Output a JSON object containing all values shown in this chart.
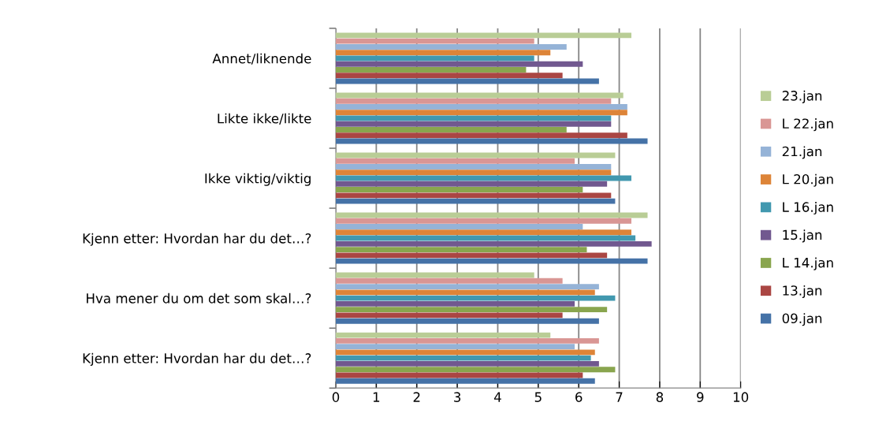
{
  "chart_data": {
    "type": "bar",
    "orientation": "horizontal",
    "categories": [
      "Annet/liknende",
      "Likte ikke/likte",
      "Ikke viktig/viktig",
      "Kjenn etter: Hvordan har du det…?",
      "Hva mener du om det som skal…?",
      "Kjenn etter: Hvordan har du det…?"
    ],
    "series": [
      {
        "name": "23.jan",
        "color": "#b9cd96",
        "values": [
          7.3,
          7.1,
          6.9,
          7.7,
          4.9,
          5.3
        ]
      },
      {
        "name": "L 22.jan",
        "color": "#d99694",
        "values": [
          4.9,
          6.8,
          5.9,
          7.3,
          5.6,
          6.5
        ]
      },
      {
        "name": "21.jan",
        "color": "#95b3d7",
        "values": [
          5.7,
          7.2,
          6.8,
          6.1,
          6.5,
          5.9
        ]
      },
      {
        "name": "L 20.jan",
        "color": "#dd8438",
        "values": [
          5.3,
          7.2,
          6.8,
          7.3,
          6.4,
          6.4
        ]
      },
      {
        "name": "L 16.jan",
        "color": "#4198af",
        "values": [
          4.9,
          6.8,
          7.3,
          7.4,
          6.9,
          6.3
        ]
      },
      {
        "name": "15.jan",
        "color": "#71588f",
        "values": [
          6.1,
          6.8,
          6.7,
          7.8,
          5.9,
          6.5
        ]
      },
      {
        "name": "L 14.jan",
        "color": "#89a54e",
        "values": [
          4.7,
          5.7,
          6.1,
          6.2,
          6.7,
          6.9
        ]
      },
      {
        "name": "13.jan",
        "color": "#aa4643",
        "values": [
          5.6,
          7.2,
          6.8,
          6.7,
          5.6,
          6.1
        ]
      },
      {
        "name": "09.jan",
        "color": "#4572a7",
        "values": [
          6.5,
          7.7,
          6.9,
          7.7,
          6.5,
          6.4
        ]
      }
    ],
    "xlim": [
      0,
      10
    ],
    "xticks": [
      0,
      1,
      2,
      3,
      4,
      5,
      6,
      7,
      8,
      9,
      10
    ],
    "grid": "x",
    "legend": "right"
  }
}
